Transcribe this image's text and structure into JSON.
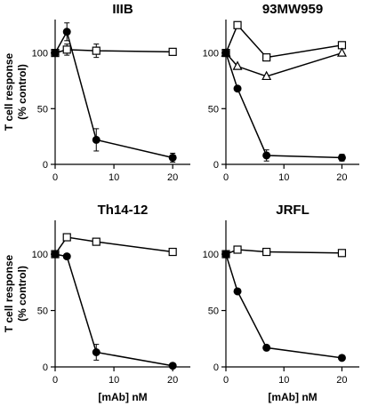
{
  "figure": {
    "ylabel_line1": "T cell response",
    "ylabel_line2": "(% control)",
    "xlabel": "[mAb] nM"
  },
  "chart_data": [
    {
      "type": "line",
      "title": "IIIB",
      "xlim": [
        0,
        23
      ],
      "ylim": [
        0,
        130
      ],
      "xticks": [
        0,
        10,
        20
      ],
      "yticks": [
        0,
        50,
        100
      ],
      "series": [
        {
          "marker": "open-square",
          "x": [
            0,
            2,
            7,
            20
          ],
          "y": [
            100,
            103,
            102,
            101
          ],
          "err": [
            0,
            5,
            6,
            0
          ]
        },
        {
          "marker": "filled-circle",
          "x": [
            0,
            2,
            7,
            20
          ],
          "y": [
            100,
            119,
            22,
            6
          ],
          "err": [
            0,
            8,
            10,
            4
          ]
        }
      ]
    },
    {
      "type": "line",
      "title": "93MW959",
      "xlim": [
        0,
        23
      ],
      "ylim": [
        0,
        130
      ],
      "xticks": [
        0,
        10,
        20
      ],
      "yticks": [
        0,
        50,
        100
      ],
      "series": [
        {
          "marker": "open-square",
          "x": [
            0,
            2,
            7,
            20
          ],
          "y": [
            100,
            125,
            96,
            107
          ],
          "err": [
            0,
            0,
            0,
            0
          ]
        },
        {
          "marker": "open-triangle",
          "x": [
            0,
            2,
            7,
            20
          ],
          "y": [
            100,
            88,
            79,
            100
          ],
          "err": [
            0,
            0,
            0,
            0
          ]
        },
        {
          "marker": "filled-circle",
          "x": [
            0,
            2,
            7,
            20
          ],
          "y": [
            100,
            68,
            8,
            6
          ],
          "err": [
            0,
            0,
            5,
            3
          ]
        }
      ]
    },
    {
      "type": "line",
      "title": "Th14-12",
      "xlim": [
        0,
        23
      ],
      "ylim": [
        0,
        130
      ],
      "xticks": [
        0,
        10,
        20
      ],
      "yticks": [
        0,
        50,
        100
      ],
      "series": [
        {
          "marker": "open-square",
          "x": [
            0,
            2,
            7,
            20
          ],
          "y": [
            100,
            115,
            111,
            102
          ],
          "err": [
            0,
            0,
            0,
            0
          ]
        },
        {
          "marker": "filled-circle",
          "x": [
            0,
            2,
            7,
            20
          ],
          "y": [
            100,
            98,
            13,
            1
          ],
          "err": [
            0,
            0,
            7,
            0
          ]
        }
      ]
    },
    {
      "type": "line",
      "title": "JRFL",
      "xlim": [
        0,
        23
      ],
      "ylim": [
        0,
        130
      ],
      "xticks": [
        0,
        10,
        20
      ],
      "yticks": [
        0,
        50,
        100
      ],
      "series": [
        {
          "marker": "open-square",
          "x": [
            0,
            2,
            7,
            20
          ],
          "y": [
            100,
            104,
            102,
            101
          ],
          "err": [
            0,
            0,
            0,
            0
          ]
        },
        {
          "marker": "filled-circle",
          "x": [
            0,
            2,
            7,
            20
          ],
          "y": [
            100,
            67,
            17,
            8
          ],
          "err": [
            0,
            0,
            0,
            0
          ]
        }
      ]
    }
  ]
}
